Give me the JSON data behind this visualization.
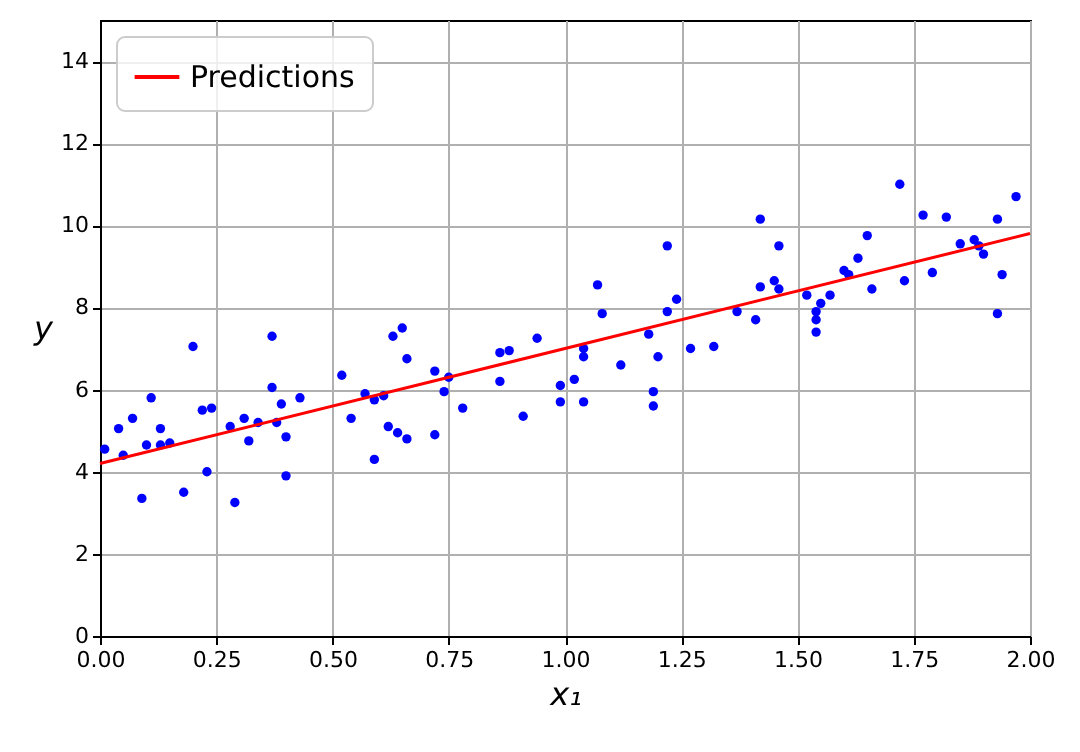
{
  "chart_data": {
    "type": "scatter",
    "xlabel": "x₁",
    "ylabel": "y",
    "xlim": [
      0,
      2
    ],
    "ylim": [
      0,
      15
    ],
    "xticks": [
      {
        "value": 0,
        "label": "0.00"
      },
      {
        "value": 0.25,
        "label": "0.25"
      },
      {
        "value": 0.5,
        "label": "0.50"
      },
      {
        "value": 0.75,
        "label": "0.75"
      },
      {
        "value": 1,
        "label": "1.00"
      },
      {
        "value": 1.25,
        "label": "1.25"
      },
      {
        "value": 1.5,
        "label": "1.50"
      },
      {
        "value": 1.75,
        "label": "1.75"
      },
      {
        "value": 2,
        "label": "2.00"
      }
    ],
    "yticks": [
      0,
      2,
      4,
      6,
      8,
      10,
      12,
      14
    ],
    "grid": true,
    "legend": "top left",
    "marker": "circle",
    "series": [
      {
        "color": "#0000ff",
        "x": [
          0.01,
          0.04,
          0.05,
          0.07,
          0.09,
          0.1,
          0.11,
          0.13,
          0.13,
          0.15,
          0.18,
          0.2,
          0.22,
          0.23,
          0.24,
          0.28,
          0.29,
          0.31,
          0.32,
          0.34,
          0.37,
          0.37,
          0.38,
          0.39,
          0.4,
          0.4,
          0.43,
          0.52,
          0.54,
          0.57,
          0.59,
          0.59,
          0.61,
          0.62,
          0.63,
          0.64,
          0.65,
          0.66,
          0.66,
          0.72,
          0.72,
          0.74,
          0.75,
          0.78,
          0.86,
          0.86,
          0.88,
          0.91,
          0.94,
          0.99,
          0.99,
          1.02,
          1.04,
          1.04,
          1.04,
          1.07,
          1.08,
          1.12,
          1.18,
          1.19,
          1.19,
          1.2,
          1.22,
          1.22,
          1.24,
          1.27,
          1.32,
          1.37,
          1.41,
          1.42,
          1.42,
          1.45,
          1.46,
          1.46,
          1.52,
          1.54,
          1.54,
          1.54,
          1.55,
          1.57,
          1.6,
          1.61,
          1.63,
          1.65,
          1.66,
          1.72,
          1.73,
          1.77,
          1.79,
          1.82,
          1.85,
          1.88,
          1.89,
          1.9,
          1.93,
          1.93,
          1.94,
          1.97
        ],
        "values": [
          4.55,
          5.05,
          4.4,
          5.3,
          3.35,
          4.65,
          5.8,
          5.05,
          4.65,
          4.7,
          3.5,
          7.05,
          5.5,
          4.0,
          5.55,
          5.1,
          3.25,
          5.3,
          4.75,
          5.2,
          6.05,
          7.3,
          5.2,
          5.65,
          3.9,
          4.85,
          5.8,
          6.35,
          5.3,
          5.9,
          4.3,
          5.75,
          5.85,
          5.1,
          7.3,
          4.95,
          7.5,
          6.75,
          4.8,
          4.9,
          6.45,
          5.95,
          6.3,
          5.55,
          6.9,
          6.2,
          6.95,
          5.35,
          7.25,
          5.7,
          6.1,
          6.25,
          5.7,
          7.0,
          6.8,
          8.55,
          7.85,
          6.6,
          7.35,
          5.95,
          5.6,
          6.8,
          9.5,
          7.9,
          8.2,
          7.0,
          7.05,
          7.9,
          7.7,
          8.5,
          10.15,
          8.65,
          8.45,
          9.5,
          8.3,
          7.7,
          7.4,
          7.9,
          8.1,
          8.3,
          8.9,
          8.8,
          9.2,
          9.75,
          8.45,
          11.0,
          8.65,
          10.25,
          8.85,
          10.2,
          9.55,
          9.65,
          9.5,
          9.3,
          10.15,
          7.85,
          8.8,
          10.7
        ]
      },
      {
        "type": "line",
        "marker": "none",
        "name": "Predictions",
        "color": "#ff0000",
        "x": [
          0,
          2
        ],
        "values": [
          4.2,
          9.8
        ]
      }
    ]
  }
}
